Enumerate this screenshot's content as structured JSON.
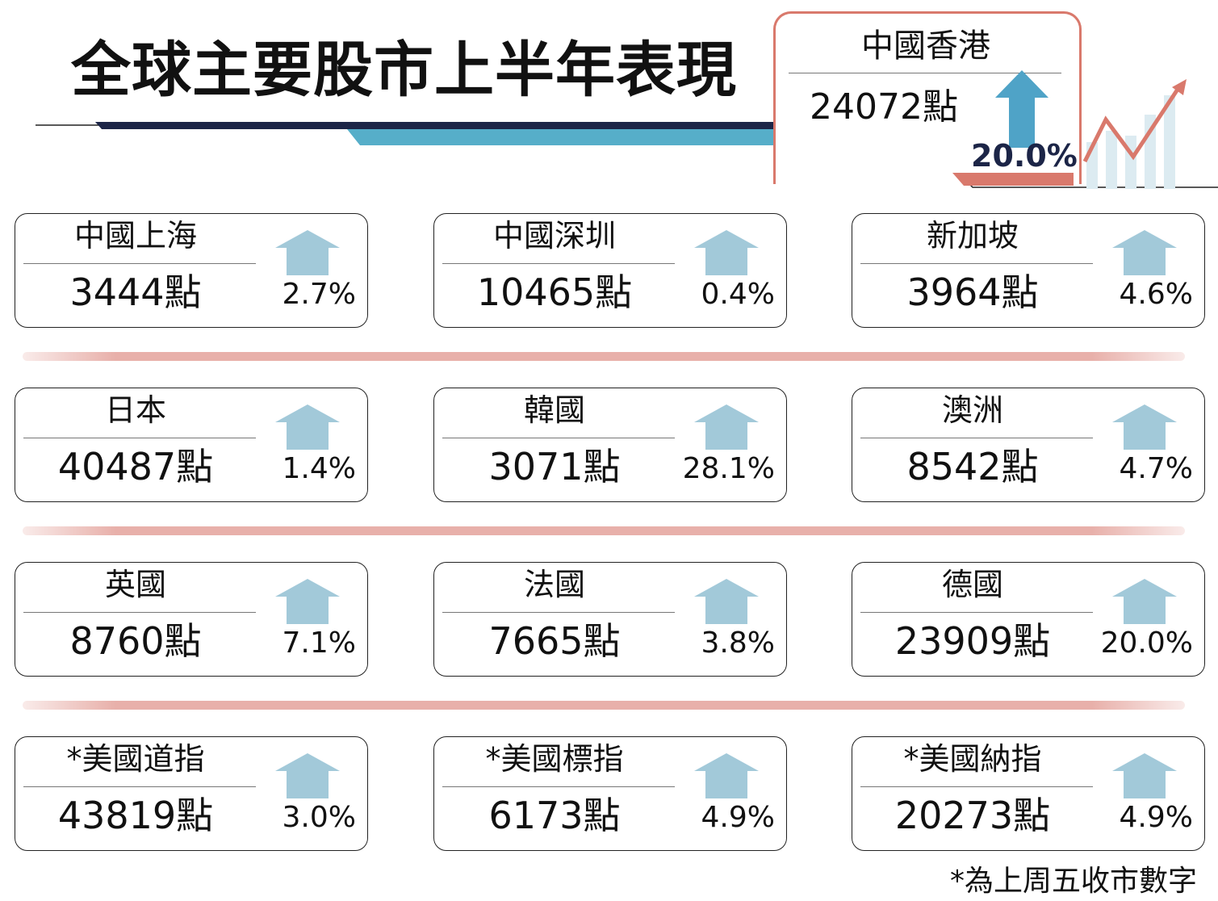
{
  "title": "全球主要股市上半年表現",
  "featured": {
    "name": "中國香港",
    "value": "24072點",
    "change": "20.0%",
    "direction": "up"
  },
  "markets": [
    {
      "name": "中國上海",
      "value": "3444點",
      "change": "2.7%",
      "direction": "up"
    },
    {
      "name": "中國深圳",
      "value": "10465點",
      "change": "0.4%",
      "direction": "up"
    },
    {
      "name": "新加坡",
      "value": "3964點",
      "change": "4.6%",
      "direction": "up"
    },
    {
      "name": "日本",
      "value": "40487點",
      "change": "1.4%",
      "direction": "up"
    },
    {
      "name": "韓國",
      "value": "3071點",
      "change": "28.1%",
      "direction": "up"
    },
    {
      "name": "澳洲",
      "value": "8542點",
      "change": "4.7%",
      "direction": "up"
    },
    {
      "name": "英國",
      "value": "8760點",
      "change": "7.1%",
      "direction": "up"
    },
    {
      "name": "法國",
      "value": "7665點",
      "change": "3.8%",
      "direction": "up"
    },
    {
      "name": "德國",
      "value": "23909點",
      "change": "20.0%",
      "direction": "up"
    },
    {
      "name": "*美國道指",
      "value": "43819點",
      "change": "3.0%",
      "direction": "up"
    },
    {
      "name": "*美國標指",
      "value": "6173點",
      "change": "4.9%",
      "direction": "up"
    },
    {
      "name": "*美國納指",
      "value": "20273點",
      "change": "4.9%",
      "direction": "up"
    }
  ],
  "footnote": "*為上周五收市數字",
  "colors": {
    "featured_arrow": "#4fa3c7",
    "card_arrow": "#a2c9d9",
    "accent_red": "#d9796c",
    "navy": "#1c2547",
    "divider": "#e8b0aa"
  },
  "icons": {
    "featured": "up-arrow-icon",
    "card": "up-arrow-icon",
    "decoration": "rising-chart-icon"
  }
}
